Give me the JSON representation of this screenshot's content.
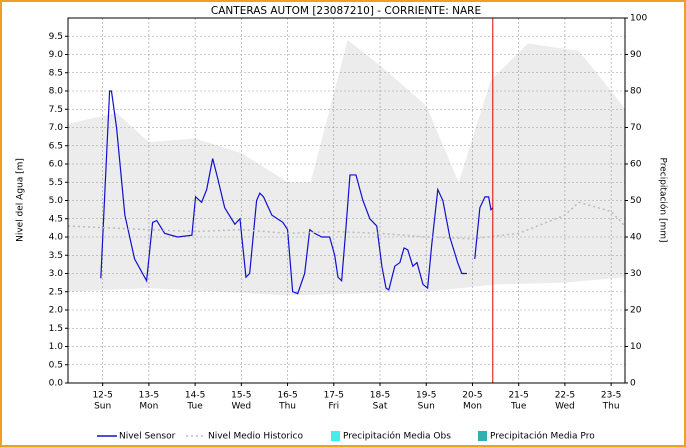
{
  "chart_data": {
    "type": "line",
    "title": "CANTERAS AUTOM   [23087210] - CORRIENTE: NARE",
    "y_label": "Nivel del Agua [m]",
    "y2_label": "Precipitación [mm]",
    "xlim": [
      11.25,
      23.3
    ],
    "xticks": [
      {
        "value": 12,
        "label": "12-5"
      },
      {
        "value": 13,
        "label": "13-5"
      },
      {
        "value": 14,
        "label": "14-5"
      },
      {
        "value": 15,
        "label": "15-5"
      },
      {
        "value": 16,
        "label": "16-5"
      },
      {
        "value": 17,
        "label": "17-5"
      },
      {
        "value": 18,
        "label": "18-5"
      },
      {
        "value": 19,
        "label": "19-5"
      },
      {
        "value": 20,
        "label": "20-5"
      },
      {
        "value": 21,
        "label": "21-5"
      },
      {
        "value": 22,
        "label": "22-5"
      },
      {
        "value": 23,
        "label": "23-5"
      }
    ],
    "xtick_days": [
      "Sun",
      "Mon",
      "Tue",
      "Wed",
      "Thu",
      "Fri",
      "Sat",
      "Sun",
      "Mon",
      "Tue",
      "Wed",
      "Thu"
    ],
    "ylim": [
      0,
      10
    ],
    "yticks": [
      {
        "value": 0,
        "label": "0.0"
      },
      0.5,
      {
        "value": 1,
        "label": "1.0"
      },
      1.5,
      {
        "value": 2,
        "label": "2.0"
      },
      2.5,
      {
        "value": 3,
        "label": "3.0"
      },
      3.5,
      {
        "value": 4,
        "label": "4.0"
      },
      4.5,
      {
        "value": 5,
        "label": "5.0"
      },
      5.5,
      {
        "value": 6,
        "label": "6.0"
      },
      6.5,
      {
        "value": 7,
        "label": "7.0"
      },
      7.5,
      {
        "value": 8,
        "label": "8.0"
      },
      8.5,
      {
        "value": 9,
        "label": "9.0"
      },
      9.5
    ],
    "y2lim": [
      0,
      100
    ],
    "y2ticks": [
      0,
      10,
      20,
      30,
      40,
      50,
      60,
      70,
      80,
      90,
      100
    ],
    "grid": true,
    "marker_x": 20.44,
    "marker_color": "#e00000",
    "band": {
      "color": "#ececec",
      "upper": {
        "x": [
          11.25,
          12.3,
          13,
          14,
          15,
          16,
          16.5,
          17.3,
          18,
          19,
          19.7,
          20.4,
          21.2,
          22.3,
          23,
          23.3
        ],
        "values": [
          7.1,
          7.4,
          6.6,
          6.7,
          6.3,
          5.5,
          5.5,
          9.4,
          8.7,
          7.6,
          5.5,
          8.3,
          9.3,
          9.1,
          8.0,
          7.5
        ]
      },
      "lower": {
        "x": [
          11.25,
          13,
          16,
          19,
          20.5,
          22,
          23.3
        ],
        "values": [
          2.5,
          2.6,
          2.4,
          2.5,
          2.7,
          2.75,
          2.9
        ]
      }
    },
    "series": [
      {
        "name": "Nivel Sensor",
        "color": "#1010d0",
        "style": "solid",
        "x": [
          11.96,
          12.15,
          12.19,
          12.3,
          12.48,
          12.69,
          12.95,
          13.08,
          13.17,
          13.34,
          13.62,
          13.93,
          14.01,
          14.14,
          14.25,
          14.38,
          14.49,
          14.64,
          14.86,
          14.97,
          15.1,
          15.18,
          15.33,
          15.4,
          15.48,
          15.66,
          15.9,
          16.0,
          16.11,
          16.22,
          16.37,
          16.48,
          16.59,
          16.74,
          16.91,
          17.02,
          17.09,
          17.17,
          17.26,
          17.35,
          17.48,
          17.63,
          17.78,
          17.93,
          18.04,
          18.13,
          18.19,
          18.32,
          18.43,
          18.52,
          18.6,
          18.71,
          18.8,
          18.93,
          19.03,
          19.12,
          19.25,
          19.36,
          19.51,
          19.68,
          19.77,
          19.88,
          19.95,
          20.05,
          20.16,
          20.27,
          20.35,
          20.4,
          20.44
        ],
        "values": [
          2.87,
          8.0,
          8.0,
          7.0,
          4.6,
          3.4,
          2.8,
          4.4,
          4.45,
          4.1,
          4.0,
          4.05,
          5.1,
          4.95,
          5.3,
          6.15,
          5.6,
          4.8,
          4.35,
          4.5,
          2.9,
          3.0,
          5.0,
          5.2,
          5.1,
          4.6,
          4.4,
          4.2,
          2.5,
          2.45,
          3.0,
          4.2,
          4.1,
          4.0,
          4.0,
          3.5,
          2.9,
          2.8,
          4.2,
          5.7,
          5.7,
          5.0,
          4.5,
          4.3,
          3.2,
          2.6,
          2.55,
          3.2,
          3.3,
          3.7,
          3.65,
          3.2,
          3.3,
          2.7,
          2.6,
          3.8,
          5.3,
          5.0,
          4.0,
          3.3,
          3.0,
          3.0,
          null,
          3.4,
          4.8,
          5.1,
          5.1,
          4.75,
          4.8
        ]
      },
      {
        "name": "Nivel Medio Historico",
        "color": "#bbbbbb",
        "style": "dotted",
        "x": [
          11.25,
          13,
          14,
          15,
          16,
          17,
          18,
          19,
          20,
          21,
          22,
          22.3,
          23,
          23.3
        ],
        "values": [
          4.3,
          4.2,
          4.15,
          4.2,
          4.1,
          4.15,
          4.1,
          4.0,
          3.95,
          4.1,
          4.6,
          4.95,
          4.7,
          4.3
        ]
      },
      {
        "name": "Precipitación Media Obs",
        "color": "#40f0f0",
        "axis": "y2",
        "style": "square"
      },
      {
        "name": "Precipitación Media Pro",
        "color": "#30b0b0",
        "axis": "y2",
        "style": "square"
      }
    ]
  }
}
